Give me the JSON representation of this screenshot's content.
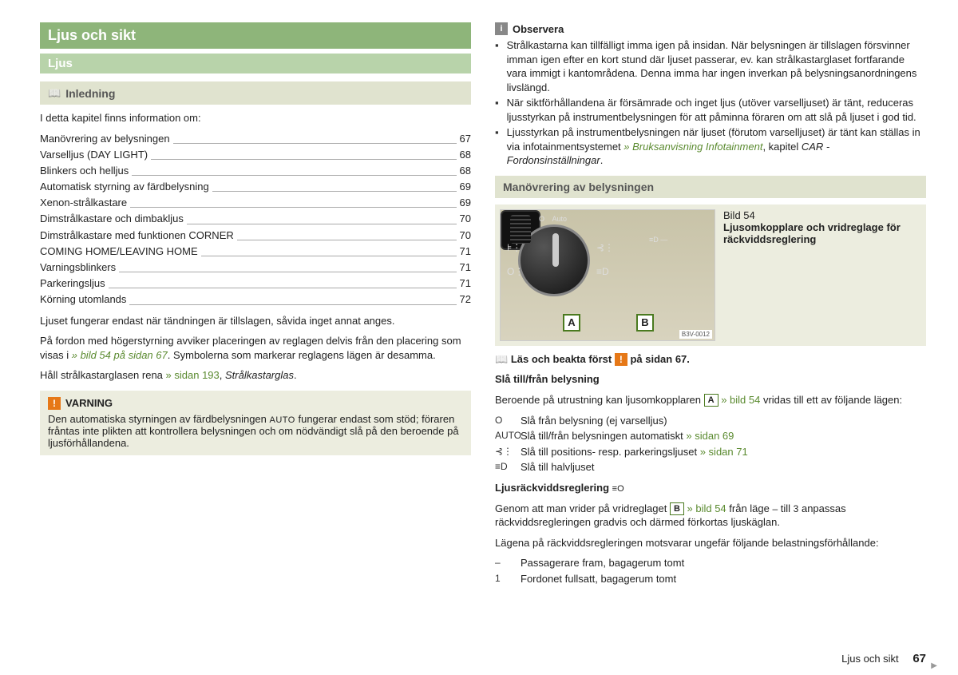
{
  "left": {
    "mainTitle": "Ljus och sikt",
    "subTitle": "Ljus",
    "introTitle": "Inledning",
    "introLine": "I detta kapitel finns information om:",
    "toc": [
      {
        "label": "Manövrering av belysningen",
        "page": "67"
      },
      {
        "label": "Varselljus (DAY LIGHT)",
        "page": "68"
      },
      {
        "label": "Blinkers och helljus",
        "page": "68"
      },
      {
        "label": "Automatisk styrning av färdbelysning",
        "page": "69"
      },
      {
        "label": "Xenon-strålkastare",
        "page": "69"
      },
      {
        "label": "Dimstrålkastare och dimbakljus",
        "page": "70"
      },
      {
        "label": "Dimstrålkastare med funktionen CORNER",
        "page": "70"
      },
      {
        "label": "COMING HOME/LEAVING HOME",
        "page": "71"
      },
      {
        "label": "Varningsblinkers",
        "page": "71"
      },
      {
        "label": "Parkeringsljus",
        "page": "71"
      },
      {
        "label": "Körning utomlands",
        "page": "72"
      }
    ],
    "p1": "Ljuset fungerar endast när tändningen är tillslagen, såvida inget annat anges.",
    "p2a": "På fordon med högerstyrning avviker placeringen av reglagen delvis från den placering som visas i ",
    "p2link": "» bild 54",
    "p2mid": " på sidan 67",
    "p2b": ". Symbolerna som markerar reglagens lägen är desamma.",
    "p3a": "Håll strålkastarglasen rena ",
    "p3link": "» sidan 193",
    "p3b": ", ",
    "p3i": "Strålkastarglas",
    "p3c": ".",
    "warnTitle": "VARNING",
    "warnText1": "Den automatiska styrningen av färdbelysningen ",
    "warnAuto": "AUTO",
    "warnText2": " fungerar endast som stöd; föraren fråntas inte plikten att kontrollera belysningen och om nödvändigt slå på den beroende på ljusförhållandena."
  },
  "right": {
    "obsTitle": "Observera",
    "obs1": "Strålkastarna kan tillfälligt imma igen på insidan. När belysningen är tillslagen försvinner imman igen efter en kort stund där ljuset passerar, ev. kan strålkastarglaset fortfarande vara immigt i kantområdena. Denna imma har ingen inverkan på belysningsanordningens livslängd.",
    "obs2": "När siktförhållandena är försämrade och inget ljus (utöver varselljuset) är tänt, reduceras ljusstyrkan på instrumentbelysningen för att påminna föraren om att slå på ljuset i god tid.",
    "obs3a": "Ljusstyrkan på instrumentbelysningen när ljuset (förutom varselljuset) är tänt kan ställas in via infotainmentsystemet ",
    "obs3link": "» Bruksanvisning Infotainment",
    "obs3b": ", kapitel ",
    "obs3i": "CAR - Fordonsinställningar",
    "obs3c": ".",
    "secTitle": "Manövrering av belysningen",
    "figNum": "Bild 54",
    "figTitle": "Ljusomkopplare och vridreglage för räckviddsreglering",
    "imgCode": "B3V-0012",
    "readFirst1": "Läs och beakta först ",
    "readFirst2": " på sidan 67.",
    "h1": "Slå till/från belysning",
    "p4a": "Beroende på utrustning kan ljusomkopplaren ",
    "p4link": " » bild 54",
    "p4b": " vridas till ett av följande lägen:",
    "modes": [
      {
        "sym": "O",
        "text": "Slå från belysning (ej varselljus)"
      },
      {
        "sym": "AUTO",
        "text": "Slå till/från belysningen automatiskt ",
        "link": "» sidan 69"
      },
      {
        "sym": "⊰⋮",
        "text": "Slå till positions- resp. parkeringsljuset ",
        "link": "» sidan 71"
      },
      {
        "sym": "≡D",
        "text": "Slå till halvljuset"
      }
    ],
    "h2": "Ljusräckviddsreglering ",
    "p5a": "Genom att man vrider på vridreglaget ",
    "p5link": " » bild 54",
    "p5b": " från läge ",
    "p5dash": "–",
    "p5c": " till ",
    "p5three": "3",
    "p5d": " anpassas räckviddsregleringen gradvis och därmed förkortas ljuskäglan.",
    "p6": "Lägena på räckviddsregleringen motsvarar ungefär följande belastningsförhållande:",
    "loads": [
      {
        "sym": "–",
        "text": "Passagerare fram, bagagerum tomt"
      },
      {
        "sym": "1",
        "text": "Fordonet fullsatt, bagagerum tomt"
      }
    ]
  },
  "footer": {
    "section": "Ljus och sikt",
    "page": "67"
  }
}
